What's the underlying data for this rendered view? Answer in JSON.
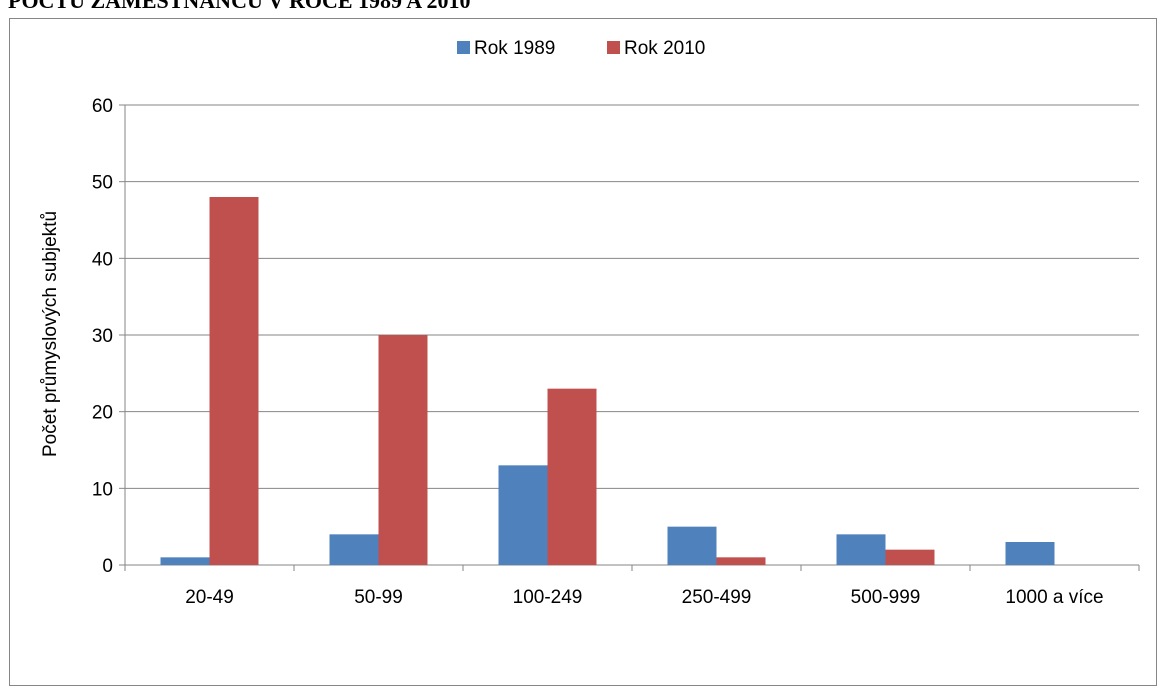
{
  "page": {
    "title": "POČTU ZAMĚSTNANCŮ V ROCE 1989 A 2010"
  },
  "chart_data": {
    "type": "bar",
    "categories": [
      "20-49",
      "50-99",
      "100-249",
      "250-499",
      "500-999",
      "1000 a více"
    ],
    "series": [
      {
        "name": "Rok 1989",
        "color": "#4F81BD",
        "values": [
          1,
          4,
          13,
          5,
          4,
          3
        ]
      },
      {
        "name": "Rok 2010",
        "color": "#C0504D",
        "values": [
          48,
          30,
          23,
          1,
          2,
          0
        ]
      }
    ],
    "title": "",
    "xlabel": "",
    "ylabel": "Počet průmyslových subjektů",
    "ylim": [
      0,
      60
    ],
    "yticks": [
      0,
      10,
      20,
      30,
      40,
      50,
      60
    ],
    "grid": true,
    "legend": "top-center"
  }
}
